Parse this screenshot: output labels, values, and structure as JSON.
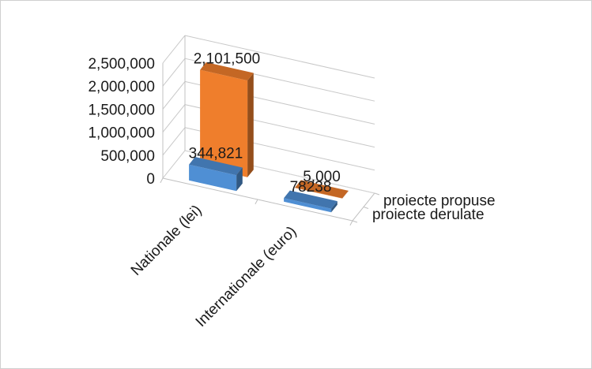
{
  "chart_data": {
    "type": "bar",
    "subtype": "3d-clustered-depth",
    "categories": [
      "Nationale (lei)",
      "Internationale (euro)"
    ],
    "series": [
      {
        "name": "proiecte derulate",
        "values": [
          344821,
          78238
        ],
        "labels": [
          "344,821",
          "78238"
        ],
        "color": "#4f8fd4"
      },
      {
        "name": "proiecte propuse",
        "values": [
          2101500,
          5000
        ],
        "labels": [
          "2,101,500",
          "5,000"
        ],
        "color": "#ef7e2c"
      }
    ],
    "y_ticks": [
      "0",
      "500,000",
      "1,000,000",
      "1,500,000",
      "2,000,000",
      "2,500,000"
    ],
    "ylim": [
      0,
      2500000
    ],
    "grid": true,
    "legend_position": "right"
  }
}
